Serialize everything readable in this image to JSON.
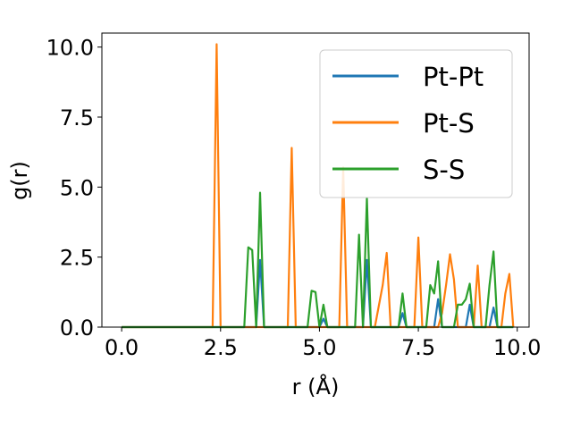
{
  "chart_data": {
    "type": "line",
    "xlabel": "r (Å)",
    "ylabel": "g(r)",
    "xlim": [
      -0.5,
      10.3
    ],
    "ylim": [
      0,
      10.5
    ],
    "xticks": [
      "0.0",
      "2.5",
      "5.0",
      "7.5",
      "10.0"
    ],
    "yticks": [
      "0.0",
      "2.5",
      "5.0",
      "7.5",
      "10.0"
    ],
    "grid": false,
    "legend_position": "top-right",
    "series": [
      {
        "name": "Pt-Pt",
        "color": "#1f77b4",
        "points": [
          [
            0.0,
            0.0
          ],
          [
            3.4,
            0.0
          ],
          [
            3.5,
            2.4
          ],
          [
            3.6,
            0.0
          ],
          [
            5.0,
            0.0
          ],
          [
            5.1,
            0.3
          ],
          [
            5.2,
            0.0
          ],
          [
            6.1,
            0.0
          ],
          [
            6.2,
            2.4
          ],
          [
            6.3,
            0.0
          ],
          [
            7.0,
            0.0
          ],
          [
            7.1,
            0.5
          ],
          [
            7.2,
            0.0
          ],
          [
            7.9,
            0.0
          ],
          [
            8.0,
            1.0
          ],
          [
            8.1,
            0.0
          ],
          [
            8.7,
            0.0
          ],
          [
            8.8,
            0.8
          ],
          [
            8.9,
            0.0
          ],
          [
            9.3,
            0.0
          ],
          [
            9.4,
            0.7
          ],
          [
            9.5,
            0.0
          ],
          [
            9.9,
            0.0
          ]
        ]
      },
      {
        "name": "Pt-S",
        "color": "#ff7f0e",
        "points": [
          [
            0.0,
            0.0
          ],
          [
            2.3,
            0.0
          ],
          [
            2.4,
            10.1
          ],
          [
            2.5,
            0.0
          ],
          [
            4.2,
            0.0
          ],
          [
            4.3,
            6.4
          ],
          [
            4.4,
            0.0
          ],
          [
            5.5,
            0.0
          ],
          [
            5.6,
            5.7
          ],
          [
            5.7,
            0.0
          ],
          [
            6.4,
            0.0
          ],
          [
            6.6,
            1.5
          ],
          [
            6.7,
            2.65
          ],
          [
            6.8,
            0.0
          ],
          [
            7.4,
            0.0
          ],
          [
            7.5,
            3.2
          ],
          [
            7.6,
            0.0
          ],
          [
            8.0,
            0.0
          ],
          [
            8.1,
            0.5
          ],
          [
            8.2,
            1.5
          ],
          [
            8.3,
            2.6
          ],
          [
            8.4,
            1.7
          ],
          [
            8.5,
            0.0
          ],
          [
            8.9,
            0.0
          ],
          [
            9.0,
            2.2
          ],
          [
            9.1,
            0.0
          ],
          [
            9.6,
            0.0
          ],
          [
            9.7,
            1.2
          ],
          [
            9.8,
            1.9
          ],
          [
            9.9,
            0.0
          ]
        ]
      },
      {
        "name": "S-S",
        "color": "#2ca02c",
        "points": [
          [
            0.0,
            0.0
          ],
          [
            3.1,
            0.0
          ],
          [
            3.2,
            2.85
          ],
          [
            3.3,
            2.75
          ],
          [
            3.4,
            0.0
          ],
          [
            3.5,
            4.8
          ],
          [
            3.6,
            0.0
          ],
          [
            4.7,
            0.0
          ],
          [
            4.8,
            1.3
          ],
          [
            4.9,
            1.25
          ],
          [
            5.0,
            0.0
          ],
          [
            5.1,
            0.8
          ],
          [
            5.2,
            0.0
          ],
          [
            5.9,
            0.0
          ],
          [
            6.0,
            3.3
          ],
          [
            6.1,
            0.0
          ],
          [
            6.2,
            4.6
          ],
          [
            6.3,
            0.0
          ],
          [
            7.0,
            0.0
          ],
          [
            7.1,
            1.2
          ],
          [
            7.2,
            0.0
          ],
          [
            7.7,
            0.0
          ],
          [
            7.8,
            1.5
          ],
          [
            7.9,
            1.2
          ],
          [
            8.0,
            2.35
          ],
          [
            8.1,
            0.0
          ],
          [
            8.4,
            0.0
          ],
          [
            8.5,
            0.8
          ],
          [
            8.6,
            0.8
          ],
          [
            8.7,
            1.0
          ],
          [
            8.8,
            1.55
          ],
          [
            8.9,
            0.0
          ],
          [
            9.2,
            0.0
          ],
          [
            9.3,
            1.5
          ],
          [
            9.4,
            2.7
          ],
          [
            9.5,
            0.0
          ],
          [
            9.9,
            0.0
          ]
        ]
      }
    ]
  }
}
